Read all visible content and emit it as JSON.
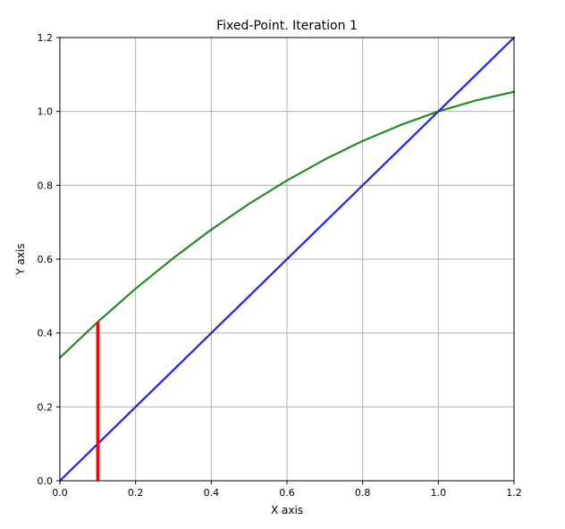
{
  "chart_data": {
    "type": "line",
    "title": "Fixed-Point. Iteration 1",
    "xlabel": "X axis",
    "ylabel": "Y axis",
    "xlim": [
      0.0,
      1.2
    ],
    "ylim": [
      0.0,
      1.2
    ],
    "xticks": [
      "0.0",
      "0.2",
      "0.4",
      "0.6",
      "0.8",
      "1.0",
      "1.2"
    ],
    "yticks": [
      "0.0",
      "0.2",
      "0.4",
      "0.6",
      "0.8",
      "1.0",
      "1.2"
    ],
    "grid": true,
    "series": [
      {
        "color": "#228b22",
        "x": [
          0.0,
          0.1,
          0.2,
          0.3,
          0.4,
          0.5,
          0.6,
          0.7,
          0.8,
          0.9,
          1.0,
          1.1,
          1.2
        ],
        "y": [
          0.333,
          0.43,
          0.52,
          0.603,
          0.68,
          0.75,
          0.813,
          0.87,
          0.92,
          0.963,
          1.0,
          1.03,
          1.053
        ]
      },
      {
        "color": "#1f1fff",
        "x": [
          0.0,
          1.2
        ],
        "y": [
          0.0,
          1.2
        ]
      }
    ],
    "annotations": [
      {
        "type": "vertical-segment",
        "color": "#ff0000",
        "x": 0.1,
        "y_from": 0.0,
        "y_to": 0.43
      }
    ]
  }
}
